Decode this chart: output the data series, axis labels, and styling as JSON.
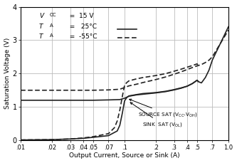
{
  "xlabel": "Output Current, Source or Sink (A)",
  "ylabel": "Saturation Voltage (V)",
  "ylim": [
    0,
    4
  ],
  "xticks": [
    0.01,
    0.02,
    0.03,
    0.04,
    0.05,
    0.07,
    0.1,
    0.2,
    0.3,
    0.4,
    0.5,
    0.7,
    1.0
  ],
  "xtick_labels": [
    ".01",
    ".02",
    ".03",
    ".04",
    ".05",
    ".07",
    ".1",
    ".2",
    ".3",
    ".4",
    ".5",
    ".7",
    "1.0"
  ],
  "yticks": [
    0,
    1,
    2,
    3,
    4
  ],
  "grid_color": "#bbbbbb",
  "bg_color": "#ffffff",
  "src25_x": [
    0.01,
    0.02,
    0.03,
    0.04,
    0.05,
    0.07,
    0.09,
    0.1,
    0.11,
    0.13,
    0.15,
    0.2,
    0.25,
    0.3,
    0.35,
    0.4,
    0.45,
    0.5,
    0.52,
    0.55,
    0.6,
    0.65,
    0.7,
    1.0
  ],
  "src25_y": [
    1.2,
    1.2,
    1.2,
    1.2,
    1.2,
    1.21,
    1.22,
    1.26,
    1.32,
    1.36,
    1.38,
    1.42,
    1.46,
    1.51,
    1.56,
    1.62,
    1.7,
    1.8,
    1.75,
    1.72,
    1.88,
    2.1,
    2.4,
    3.4
  ],
  "src55_x": [
    0.01,
    0.02,
    0.03,
    0.04,
    0.05,
    0.07,
    0.09,
    0.1,
    0.11,
    0.13,
    0.15,
    0.2,
    0.25,
    0.3,
    0.35,
    0.4,
    0.45,
    0.5,
    0.55,
    0.6,
    0.65,
    0.7,
    1.0
  ],
  "src55_y": [
    1.5,
    1.5,
    1.5,
    1.5,
    1.5,
    1.51,
    1.53,
    1.58,
    1.63,
    1.68,
    1.73,
    1.82,
    1.9,
    1.98,
    2.05,
    2.12,
    2.18,
    2.23,
    2.27,
    2.33,
    2.4,
    2.5,
    3.3
  ],
  "sink25_x": [
    0.01,
    0.02,
    0.03,
    0.04,
    0.05,
    0.07,
    0.085,
    0.09,
    0.095,
    0.1,
    0.105,
    0.11,
    0.13,
    0.15,
    0.2,
    0.25,
    0.3,
    0.35,
    0.4,
    0.45,
    0.5,
    0.51
  ],
  "sink25_y": [
    0.01,
    0.02,
    0.04,
    0.06,
    0.09,
    0.14,
    0.28,
    0.45,
    0.8,
    1.18,
    1.28,
    1.33,
    1.37,
    1.4,
    1.43,
    1.47,
    1.52,
    1.57,
    1.62,
    1.7,
    1.8,
    1.76
  ],
  "sink55_x": [
    0.01,
    0.02,
    0.03,
    0.04,
    0.05,
    0.07,
    0.08,
    0.085,
    0.09,
    0.095,
    0.1,
    0.105,
    0.11,
    0.13,
    0.15,
    0.2,
    0.25,
    0.3,
    0.35,
    0.4,
    0.45,
    0.5,
    0.51
  ],
  "sink55_y": [
    0.01,
    0.02,
    0.04,
    0.07,
    0.11,
    0.2,
    0.38,
    0.58,
    0.9,
    1.3,
    1.65,
    1.73,
    1.78,
    1.84,
    1.88,
    1.94,
    2.0,
    2.07,
    2.13,
    2.19,
    2.24,
    2.29,
    2.24
  ]
}
